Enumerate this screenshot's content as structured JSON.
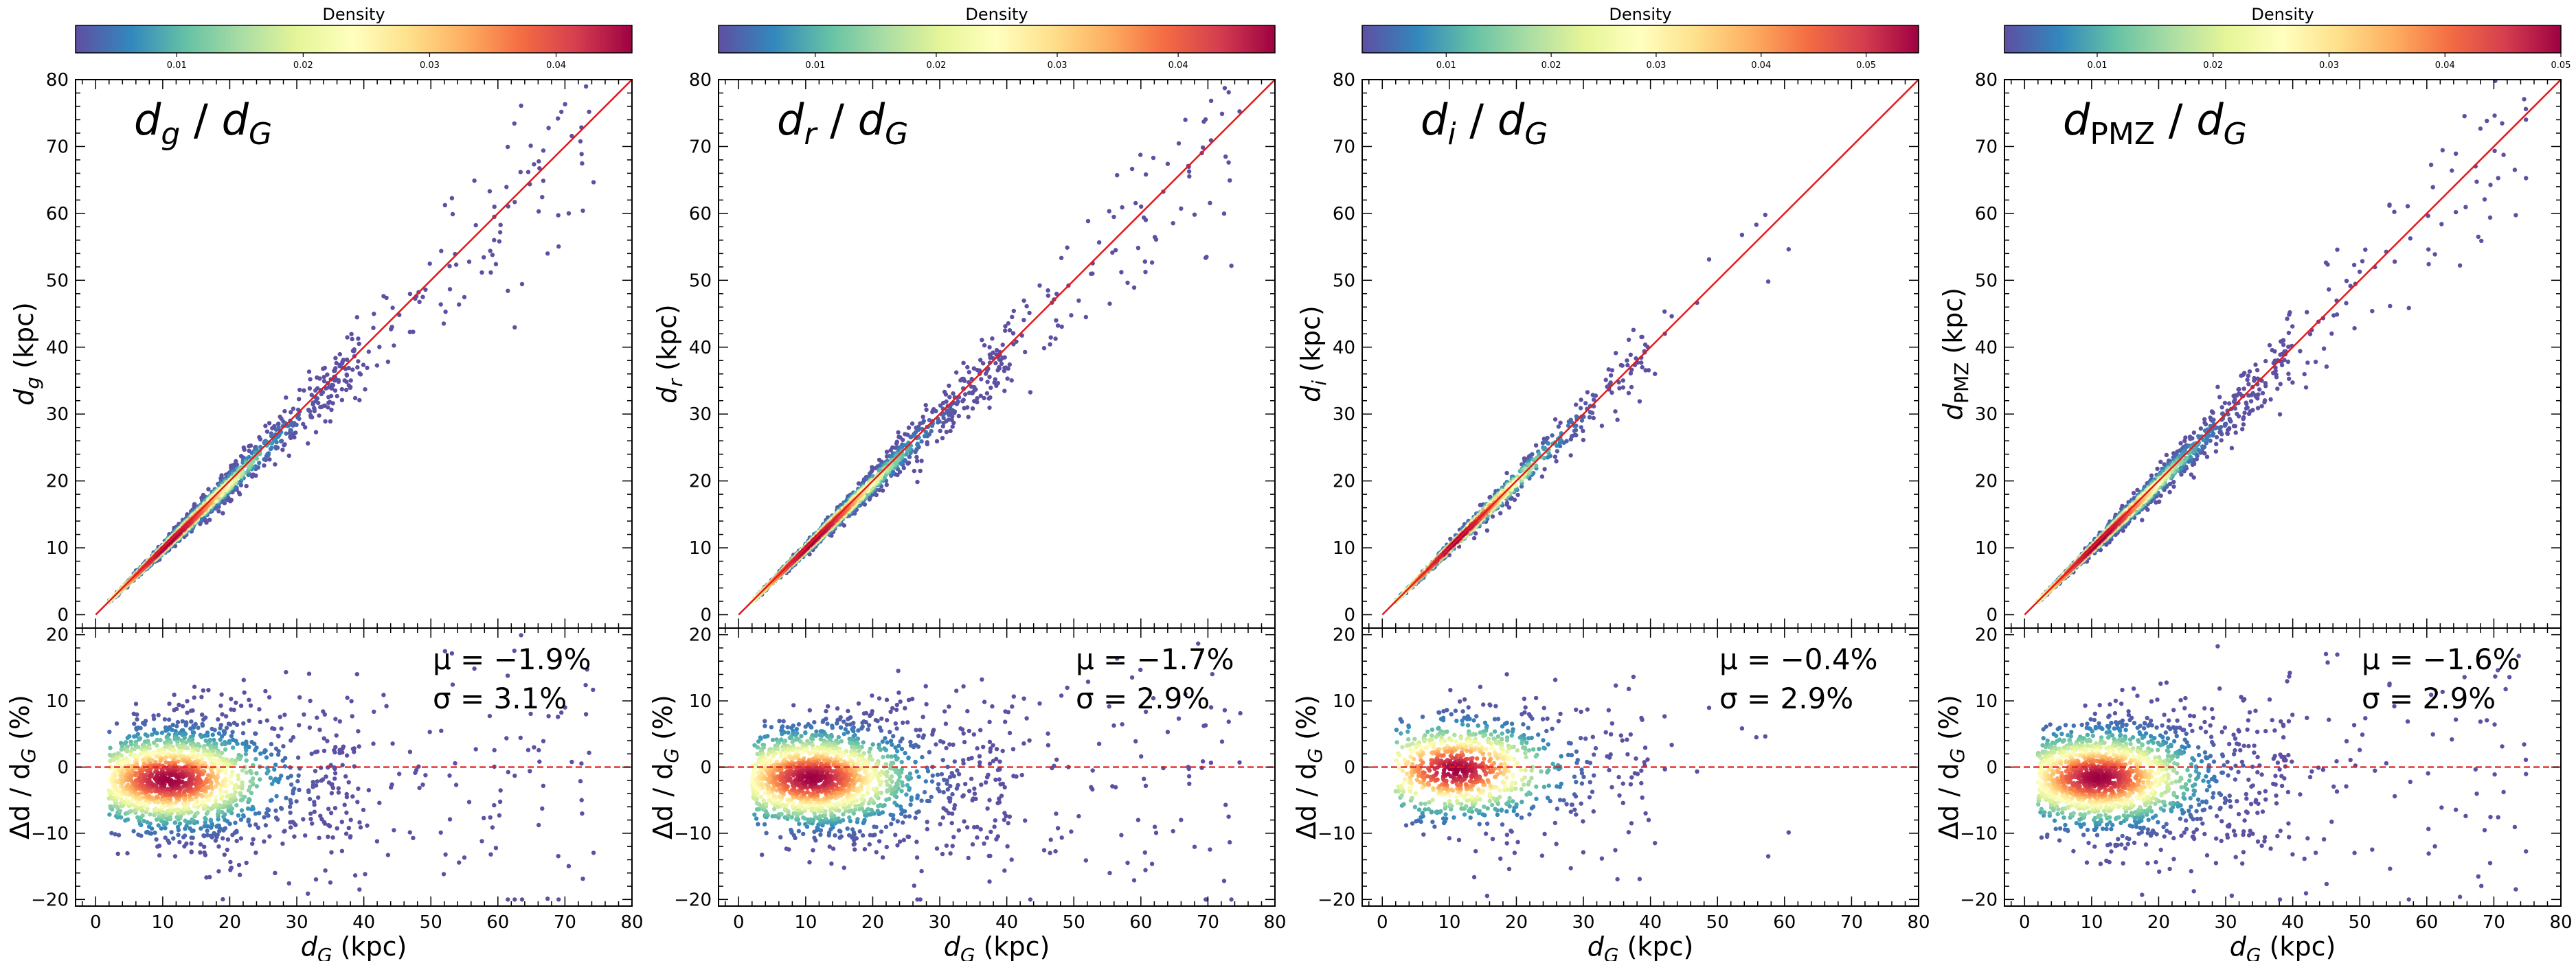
{
  "figure": {
    "colormap_name": "Spectral_r",
    "colors": {
      "identity_line": "#e41a1c",
      "zero_line": "#e41a1c",
      "frame": "#000000",
      "cmap_stops": [
        "#5e4fa2",
        "#3288bd",
        "#66c2a5",
        "#abdda4",
        "#e6f598",
        "#ffffbf",
        "#fee08b",
        "#fdae61",
        "#f46d43",
        "#d53e4f",
        "#9e0142"
      ]
    }
  },
  "chart_data": [
    {
      "type": "scatter",
      "title_main": "d",
      "title_sub": "g",
      "title_sep": " / ",
      "title_ref": "d",
      "title_ref_sub": "G",
      "ylabel_main": "d",
      "ylabel_sub": "g",
      "ylabel_unit": " (kpc)",
      "xlabel_main": "d",
      "xlabel_sub": "G",
      "xlabel_unit": " (kpc)",
      "residual_ylabel_prefix": "Δd / d",
      "residual_ylabel_sub": "G",
      "residual_ylabel_unit": " (%)",
      "xlim": [
        -3,
        80
      ],
      "ylim": [
        -2,
        80
      ],
      "residual_ylim": [
        -21,
        21
      ],
      "xticks": [
        0,
        10,
        20,
        30,
        40,
        50,
        60,
        70,
        80
      ],
      "yticks": [
        0,
        10,
        20,
        30,
        40,
        50,
        60,
        70,
        80
      ],
      "residual_yticks": [
        -20,
        -10,
        0,
        10,
        20
      ],
      "mu_label": "μ = −1.9%",
      "sigma_label": "σ = 3.1%",
      "mu": -1.9,
      "sigma": 3.1,
      "n_points": 1800,
      "colorbar": {
        "title": "Density",
        "ticks": [
          0.01,
          0.02,
          0.03,
          0.04
        ],
        "range": [
          0.002,
          0.046
        ]
      }
    },
    {
      "type": "scatter",
      "title_main": "d",
      "title_sub": "r",
      "title_sep": " / ",
      "title_ref": "d",
      "title_ref_sub": "G",
      "ylabel_main": "d",
      "ylabel_sub": "r",
      "ylabel_unit": " (kpc)",
      "xlabel_main": "d",
      "xlabel_sub": "G",
      "xlabel_unit": " (kpc)",
      "residual_ylabel_prefix": "Δd / d",
      "residual_ylabel_sub": "G",
      "residual_ylabel_unit": " (%)",
      "xlim": [
        -3,
        80
      ],
      "ylim": [
        -2,
        80
      ],
      "residual_ylim": [
        -21,
        21
      ],
      "xticks": [
        0,
        10,
        20,
        30,
        40,
        50,
        60,
        70,
        80
      ],
      "yticks": [
        0,
        10,
        20,
        30,
        40,
        50,
        60,
        70,
        80
      ],
      "residual_yticks": [
        -20,
        -10,
        0,
        10,
        20
      ],
      "mu_label": "μ = −1.7%",
      "sigma_label": "σ = 2.9%",
      "mu": -1.7,
      "sigma": 2.9,
      "n_points": 1800,
      "colorbar": {
        "title": "Density",
        "ticks": [
          0.01,
          0.02,
          0.03,
          0.04
        ],
        "range": [
          0.002,
          0.048
        ]
      }
    },
    {
      "type": "scatter",
      "title_main": "d",
      "title_sub": "i",
      "title_sep": " / ",
      "title_ref": "d",
      "title_ref_sub": "G",
      "ylabel_main": "d",
      "ylabel_sub": "i",
      "ylabel_unit": " (kpc)",
      "xlabel_main": "d",
      "xlabel_sub": "G",
      "xlabel_unit": " (kpc)",
      "residual_ylabel_prefix": "Δd / d",
      "residual_ylabel_sub": "G",
      "residual_ylabel_unit": " (%)",
      "xlim": [
        -3,
        80
      ],
      "ylim": [
        -2,
        80
      ],
      "residual_ylim": [
        -21,
        21
      ],
      "xticks": [
        0,
        10,
        20,
        30,
        40,
        50,
        60,
        70,
        80
      ],
      "yticks": [
        0,
        10,
        20,
        30,
        40,
        50,
        60,
        70,
        80
      ],
      "residual_yticks": [
        -20,
        -10,
        0,
        10,
        20
      ],
      "mu_label": "μ = −0.4%",
      "sigma_label": "σ = 2.9%",
      "mu": -0.4,
      "sigma": 2.9,
      "n_points": 900,
      "colorbar": {
        "title": "Density",
        "ticks": [
          0.01,
          0.02,
          0.03,
          0.04,
          0.05
        ],
        "range": [
          0.002,
          0.055
        ]
      }
    },
    {
      "type": "scatter",
      "title_main": "d",
      "title_sub": "PMZ",
      "title_sep": " / ",
      "title_ref": "d",
      "title_ref_sub": "G",
      "ylabel_main": "d",
      "ylabel_sub": "PMZ",
      "ylabel_unit": " (kpc)",
      "xlabel_main": "d",
      "xlabel_sub": "G",
      "xlabel_unit": " (kpc)",
      "residual_ylabel_prefix": "Δd / d",
      "residual_ylabel_sub": "G",
      "residual_ylabel_unit": " (%)",
      "xlim": [
        -3,
        80
      ],
      "ylim": [
        -2,
        80
      ],
      "residual_ylim": [
        -21,
        21
      ],
      "xticks": [
        0,
        10,
        20,
        30,
        40,
        50,
        60,
        70,
        80
      ],
      "yticks": [
        0,
        10,
        20,
        30,
        40,
        50,
        60,
        70,
        80
      ],
      "residual_yticks": [
        -20,
        -10,
        0,
        10,
        20
      ],
      "mu_label": "μ = −1.6%",
      "sigma_label": "σ = 2.9%",
      "mu": -1.6,
      "sigma": 2.9,
      "n_points": 1800,
      "colorbar": {
        "title": "Density",
        "ticks": [
          0.01,
          0.02,
          0.03,
          0.04,
          0.05
        ],
        "range": [
          0.002,
          0.05
        ]
      }
    }
  ]
}
